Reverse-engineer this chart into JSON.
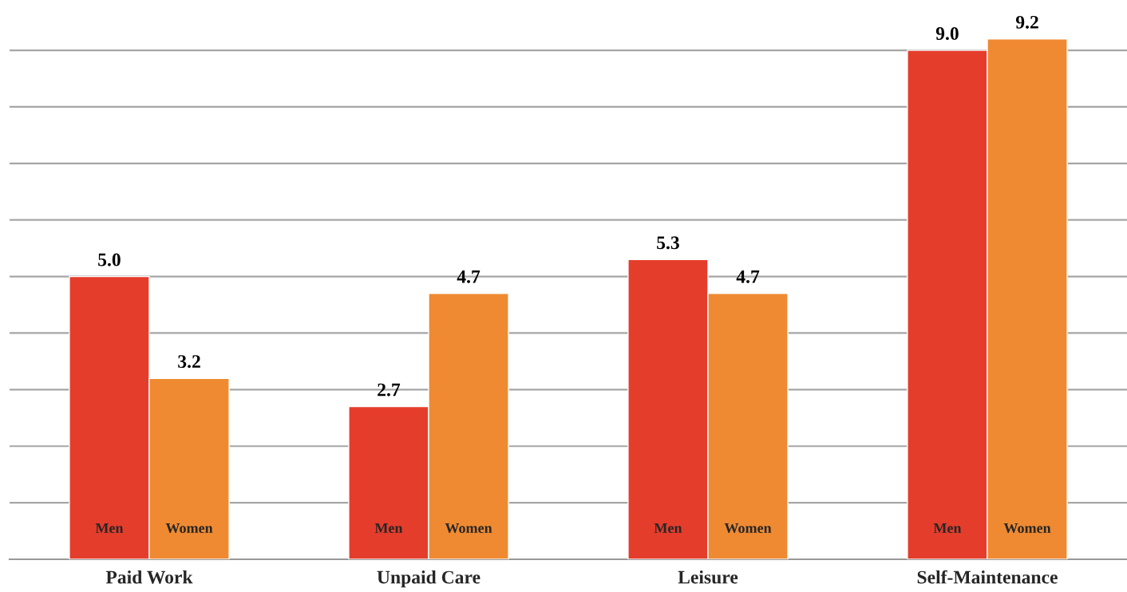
{
  "chart_data": {
    "type": "bar",
    "categories": [
      "Paid Work",
      "Unpaid Care",
      "Leisure",
      "Self-Maintenance"
    ],
    "series": [
      {
        "name": "Men",
        "color": "#e53d2c",
        "values": [
          5.0,
          2.7,
          5.3,
          9.0
        ],
        "value_labels": [
          "5.0",
          "2.7",
          "5.3",
          "9.0"
        ]
      },
      {
        "name": "Women",
        "color": "#ef8a32",
        "values": [
          3.2,
          4.7,
          4.7,
          9.2
        ],
        "value_labels": [
          "3.2",
          "4.7",
          "4.7",
          "9.2"
        ]
      }
    ],
    "yticks": [
      {
        "value": 0,
        "label": null
      },
      {
        "value": 1,
        "label": null
      },
      {
        "value": 2,
        "label": null
      },
      {
        "value": 3,
        "label": null
      },
      {
        "value": 4,
        "label": null
      },
      {
        "value": 5,
        "label": null
      },
      {
        "value": 6,
        "label": null
      },
      {
        "value": 7,
        "label": null
      },
      {
        "value": 8,
        "label": null
      },
      {
        "value": 9,
        "label": null
      }
    ],
    "tick_labels": "x",
    "grid": "y",
    "legend": false
  }
}
